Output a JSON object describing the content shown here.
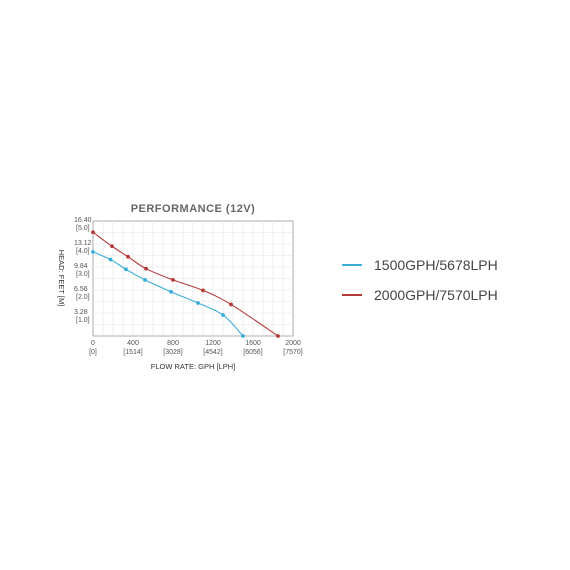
{
  "chart_data": {
    "type": "line",
    "title": "PERFORMANCE (12V)",
    "xlabel": "FLOW RATE: GPH [LPH]",
    "ylabel": "HEAD: FEET [M]",
    "xlim": [
      0,
      2000
    ],
    "ylim": [
      0,
      16.4
    ],
    "grid": true,
    "legend_position": "right",
    "x_ticks": [
      {
        "value": 0,
        "label": "0",
        "sub": "[0]"
      },
      {
        "value": 400,
        "label": "400",
        "sub": "[1514]"
      },
      {
        "value": 800,
        "label": "800",
        "sub": "[3028]"
      },
      {
        "value": 1200,
        "label": "1200",
        "sub": "[4542]"
      },
      {
        "value": 1600,
        "label": "1600",
        "sub": "[6056]"
      },
      {
        "value": 2000,
        "label": "2000",
        "sub": "[7570]"
      }
    ],
    "y_ticks": [
      {
        "value": 16.4,
        "label": "16.40",
        "sub": "[5.0]"
      },
      {
        "value": 13.12,
        "label": "13.12",
        "sub": "[4.0]"
      },
      {
        "value": 9.84,
        "label": "9.84",
        "sub": "[3.0]"
      },
      {
        "value": 6.56,
        "label": "6.56",
        "sub": "[2.0]"
      },
      {
        "value": 3.28,
        "label": "3.28",
        "sub": "[1.0]"
      }
    ],
    "series": [
      {
        "name": "1500GPH/5678LPH",
        "color": "#3aaed8",
        "x": [
          0,
          175,
          330,
          520,
          780,
          1050,
          1300,
          1500
        ],
        "y": [
          12.0,
          10.9,
          9.5,
          8.0,
          6.3,
          4.7,
          3.0,
          0
        ]
      },
      {
        "name": "2000GPH/7570LPH",
        "color": "#b53a3a",
        "x": [
          0,
          190,
          350,
          530,
          800,
          1100,
          1380,
          1850
        ],
        "y": [
          14.8,
          12.8,
          11.3,
          9.6,
          8.0,
          6.5,
          4.5,
          0
        ]
      }
    ]
  }
}
